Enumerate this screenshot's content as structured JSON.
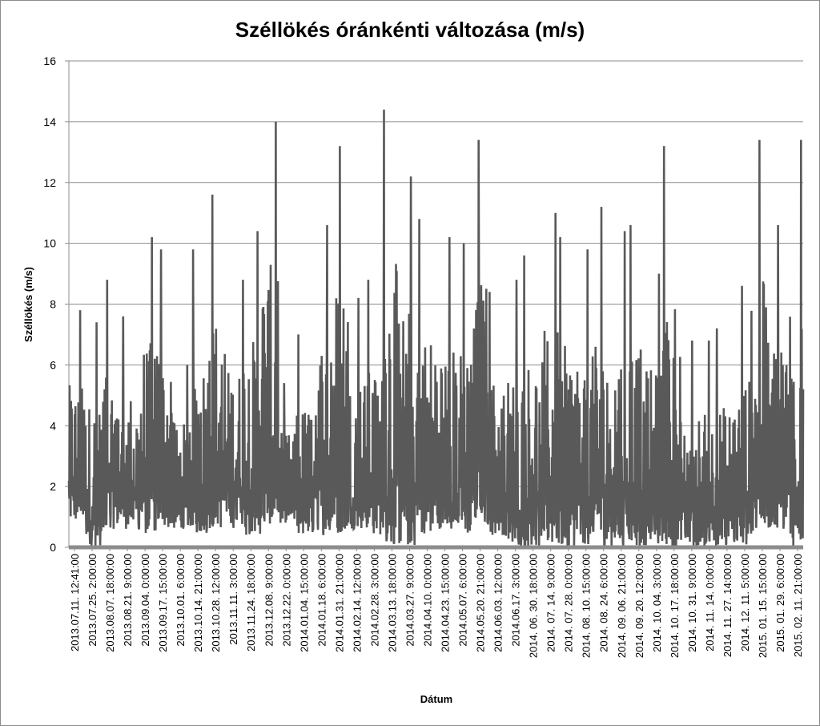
{
  "chart_data": {
    "type": "line",
    "title": "Széllökés óránkénti változása (m/s)",
    "xlabel": "Dátum",
    "ylabel": "Széllökés (m/s)",
    "ylim": [
      0,
      16
    ],
    "yticks": [
      "0",
      "2",
      "4",
      "6",
      "8",
      "10",
      "12",
      "14",
      "16"
    ],
    "grid": true,
    "legend": "none",
    "colors": {
      "series": "#595959",
      "grid": "#8c8c8c",
      "axis": "#8c8c8c"
    },
    "x_tick_labels": [
      "2013.07.11. 12:41:00",
      "2013.07.25. 2:00:00",
      "2013.08.07. 18:00:00",
      "2013.08.21. 9:00:00",
      "2013.09.04. 0:00:00",
      "2013.09.17. 15:00:00",
      "2013.10.01. 6:00:00",
      "2013.10.14. 21:00:00",
      "2013.10.28. 12:00:00",
      "2013.11.11. 3:00:00",
      "2013.11.24. 18:00:00",
      "2013.12.08. 9:00:00",
      "2013.12.22. 0:00:00",
      "2014.01.04. 15:00:00",
      "2014.01.18. 6:00:00",
      "2014.01.31. 21:00:00",
      "2014.02.14. 12:00:00",
      "2014.02.28. 3:00:00",
      "2014.03.13. 18:00:00",
      "2014.03.27. 9:00:00",
      "2014.04.10. 0:00:00",
      "2014.04.23. 15:00:00",
      "2014.05.07. 6:00:00",
      "2014.05.20. 21:00:00",
      "2014.06.03. 12:00:00",
      "2014.06.17. 3:00:00",
      "2014. 06. 30. 18:00:00",
      "2014. 07. 14. 9:00:00",
      "2014. 07. 28. 0:00:00",
      "2014. 08. 10. 15:00:00",
      "2014. 08. 24. 6:00:00",
      "2014. 09. 06. 21:00:00",
      "2014. 09. 20. 12:00:00",
      "2014. 10. 04. 3:00:00",
      "2014. 10. 17. 18:00:00",
      "2014. 10. 31. 9:00:00",
      "2014. 11. 14. 0:00:00",
      "2014. 11. 27. 14:00:00",
      "2014. 12. 11. 5:00:00",
      "2015. 01. 15. 15:00:00",
      "2015. 01. 29. 6:00:00",
      "2015. 02. 11. 21:00:00"
    ],
    "series": [
      {
        "values_by_x_tick": [
          {
            "x": "2013.07.11. 12:41:00",
            "max": 7.8,
            "min": 0.8
          },
          {
            "x": "2013.07.25. 2:00:00",
            "max": 7.4,
            "min": 0.0
          },
          {
            "x": "2013.08.07. 18:00:00",
            "max": 8.8,
            "min": 0.6
          },
          {
            "x": "2013.08.21. 9:00:00",
            "max": 7.6,
            "min": 0.6
          },
          {
            "x": "2013.09.04. 0:00:00",
            "max": 10.2,
            "min": 0.4
          },
          {
            "x": "2013.09.17. 15:00:00",
            "max": 9.8,
            "min": 0.6
          },
          {
            "x": "2013.10.01. 6:00:00",
            "max": 6.0,
            "min": 0.6
          },
          {
            "x": "2013.10.14. 21:00:00",
            "max": 9.8,
            "min": 0.4
          },
          {
            "x": "2013.10.28. 12:00:00",
            "max": 11.6,
            "min": 0.6
          },
          {
            "x": "2013.11.11. 3:00:00",
            "max": 8.8,
            "min": 0.6
          },
          {
            "x": "2013.11.24. 18:00:00",
            "max": 10.4,
            "min": 0.4
          },
          {
            "x": "2013.12.08. 9:00:00",
            "max": 14.0,
            "min": 0.6
          },
          {
            "x": "2013.12.22. 0:00:00",
            "max": 5.4,
            "min": 0.8
          },
          {
            "x": "2014.01.04. 15:00:00",
            "max": 7.0,
            "min": 0.4
          },
          {
            "x": "2014.01.18. 6:00:00",
            "max": 10.6,
            "min": 0.4
          },
          {
            "x": "2014.01.31. 21:00:00",
            "max": 13.2,
            "min": 0.4
          },
          {
            "x": "2014.02.14. 12:00:00",
            "max": 8.2,
            "min": 0.6
          },
          {
            "x": "2014.02.28. 3:00:00",
            "max": 8.8,
            "min": 0.4
          },
          {
            "x": "2014.03.13. 18:00:00",
            "max": 14.4,
            "min": 0.0
          },
          {
            "x": "2014.03.27. 9:00:00",
            "max": 12.2,
            "min": 0.0
          },
          {
            "x": "2014.04.10. 0:00:00",
            "max": 10.8,
            "min": 0.4
          },
          {
            "x": "2014.04.23. 15:00:00",
            "max": 10.2,
            "min": 0.6
          },
          {
            "x": "2014.05.07. 6:00:00",
            "max": 10.0,
            "min": 0.4
          },
          {
            "x": "2014.05.20. 21:00:00",
            "max": 13.4,
            "min": 0.6
          },
          {
            "x": "2014.06.03. 12:00:00",
            "max": 8.4,
            "min": 0.4
          },
          {
            "x": "2014.06.17. 3:00:00",
            "max": 8.8,
            "min": 0.0
          },
          {
            "x": "2014. 06. 30. 18:00:00",
            "max": 9.6,
            "min": 0.0
          },
          {
            "x": "2014. 07. 14. 9:00:00",
            "max": 11.0,
            "min": 0.0
          },
          {
            "x": "2014. 07. 28. 0:00:00",
            "max": 10.2,
            "min": 0.0
          },
          {
            "x": "2014. 08. 10. 15:00:00",
            "max": 9.8,
            "min": 0.0
          },
          {
            "x": "2014. 08. 24. 6:00:00",
            "max": 11.2,
            "min": 0.0
          },
          {
            "x": "2014. 09. 06. 21:00:00",
            "max": 10.4,
            "min": 0.0
          },
          {
            "x": "2014. 09. 20. 12:00:00",
            "max": 10.6,
            "min": 0.0
          },
          {
            "x": "2014. 10. 04. 3:00:00",
            "max": 9.0,
            "min": 0.0
          },
          {
            "x": "2014. 10. 17. 18:00:00",
            "max": 13.2,
            "min": 0.0
          },
          {
            "x": "2014. 10. 31. 9:00:00",
            "max": 6.8,
            "min": 0.0
          },
          {
            "x": "2014. 11. 14. 0:00:00",
            "max": 6.8,
            "min": 0.0
          },
          {
            "x": "2014. 11. 27. 14:00:00",
            "max": 7.2,
            "min": 0.0
          },
          {
            "x": "2014. 12. 11. 5:00:00",
            "max": 8.6,
            "min": 0.0
          },
          {
            "x": "2015. 01. 15. 15:00:00",
            "max": 13.4,
            "min": 0.4
          },
          {
            "x": "2015. 01. 29. 6:00:00",
            "max": 10.6,
            "min": 0.6
          },
          {
            "x": "2015. 02. 11. 21:00:00",
            "max": 13.4,
            "min": 0.0
          }
        ],
        "last_value": 5.2
      }
    ]
  }
}
